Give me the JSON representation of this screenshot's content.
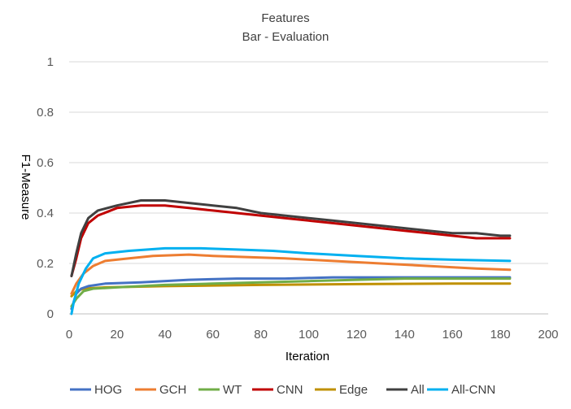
{
  "chart_data": {
    "type": "line",
    "title": "Features",
    "subtitle": "Bar - Evaluation",
    "xlabel": "Iteration",
    "ylabel": "F1-Measure",
    "xlim": [
      0,
      200
    ],
    "ylim": [
      0,
      1
    ],
    "x_ticks": [
      "0",
      "20",
      "40",
      "60",
      "80",
      "100",
      "120",
      "140",
      "160",
      "180",
      "200"
    ],
    "y_ticks": [
      "0",
      "0.2",
      "0.4",
      "0.6",
      "0.8",
      "1"
    ],
    "grid": "horizontal",
    "legend_position": "bottom",
    "series": [
      {
        "name": "HOG",
        "color": "#4472C4",
        "points": [
          [
            1,
            0.02
          ],
          [
            3,
            0.08
          ],
          [
            5,
            0.1
          ],
          [
            8,
            0.11
          ],
          [
            15,
            0.12
          ],
          [
            30,
            0.125
          ],
          [
            50,
            0.135
          ],
          [
            70,
            0.14
          ],
          [
            90,
            0.14
          ],
          [
            110,
            0.145
          ],
          [
            130,
            0.145
          ],
          [
            150,
            0.145
          ],
          [
            170,
            0.145
          ],
          [
            184,
            0.145
          ]
        ]
      },
      {
        "name": "GCH",
        "color": "#ED7D31",
        "points": [
          [
            1,
            0.08
          ],
          [
            3,
            0.12
          ],
          [
            6,
            0.16
          ],
          [
            10,
            0.19
          ],
          [
            15,
            0.21
          ],
          [
            25,
            0.22
          ],
          [
            35,
            0.23
          ],
          [
            50,
            0.235
          ],
          [
            60,
            0.23
          ],
          [
            75,
            0.225
          ],
          [
            90,
            0.22
          ],
          [
            110,
            0.21
          ],
          [
            130,
            0.2
          ],
          [
            150,
            0.19
          ],
          [
            170,
            0.18
          ],
          [
            184,
            0.175
          ]
        ]
      },
      {
        "name": "WT",
        "color": "#70AD47",
        "points": [
          [
            1,
            0.03
          ],
          [
            3,
            0.06
          ],
          [
            6,
            0.09
          ],
          [
            10,
            0.1
          ],
          [
            20,
            0.105
          ],
          [
            40,
            0.115
          ],
          [
            60,
            0.12
          ],
          [
            80,
            0.125
          ],
          [
            100,
            0.13
          ],
          [
            120,
            0.135
          ],
          [
            140,
            0.14
          ],
          [
            160,
            0.14
          ],
          [
            184,
            0.14
          ]
        ]
      },
      {
        "name": "CNN",
        "color": "#C00000",
        "points": [
          [
            1,
            0.15
          ],
          [
            3,
            0.22
          ],
          [
            5,
            0.3
          ],
          [
            8,
            0.36
          ],
          [
            12,
            0.39
          ],
          [
            20,
            0.42
          ],
          [
            30,
            0.43
          ],
          [
            40,
            0.43
          ],
          [
            50,
            0.42
          ],
          [
            60,
            0.41
          ],
          [
            70,
            0.4
          ],
          [
            80,
            0.39
          ],
          [
            90,
            0.38
          ],
          [
            100,
            0.37
          ],
          [
            110,
            0.36
          ],
          [
            120,
            0.35
          ],
          [
            130,
            0.34
          ],
          [
            140,
            0.33
          ],
          [
            150,
            0.32
          ],
          [
            160,
            0.31
          ],
          [
            170,
            0.3
          ],
          [
            180,
            0.3
          ],
          [
            184,
            0.3
          ]
        ]
      },
      {
        "name": "Edge",
        "color": "#BF9000",
        "points": [
          [
            1,
            0.07
          ],
          [
            3,
            0.09
          ],
          [
            6,
            0.1
          ],
          [
            15,
            0.105
          ],
          [
            40,
            0.11
          ],
          [
            80,
            0.115
          ],
          [
            120,
            0.118
          ],
          [
            160,
            0.12
          ],
          [
            184,
            0.12
          ]
        ]
      },
      {
        "name": "All",
        "color": "#404040",
        "points": [
          [
            1,
            0.15
          ],
          [
            3,
            0.24
          ],
          [
            5,
            0.32
          ],
          [
            8,
            0.38
          ],
          [
            12,
            0.41
          ],
          [
            20,
            0.43
          ],
          [
            30,
            0.45
          ],
          [
            40,
            0.45
          ],
          [
            50,
            0.44
          ],
          [
            60,
            0.43
          ],
          [
            70,
            0.42
          ],
          [
            80,
            0.4
          ],
          [
            90,
            0.39
          ],
          [
            100,
            0.38
          ],
          [
            110,
            0.37
          ],
          [
            120,
            0.36
          ],
          [
            130,
            0.35
          ],
          [
            140,
            0.34
          ],
          [
            150,
            0.33
          ],
          [
            160,
            0.32
          ],
          [
            170,
            0.32
          ],
          [
            180,
            0.31
          ],
          [
            184,
            0.31
          ]
        ]
      },
      {
        "name": "All-CNN",
        "color": "#00B0F0",
        "points": [
          [
            1,
            0.0
          ],
          [
            2,
            0.05
          ],
          [
            4,
            0.12
          ],
          [
            7,
            0.18
          ],
          [
            10,
            0.22
          ],
          [
            15,
            0.24
          ],
          [
            25,
            0.25
          ],
          [
            40,
            0.26
          ],
          [
            55,
            0.26
          ],
          [
            70,
            0.255
          ],
          [
            85,
            0.25
          ],
          [
            100,
            0.24
          ],
          [
            120,
            0.23
          ],
          [
            140,
            0.22
          ],
          [
            160,
            0.215
          ],
          [
            184,
            0.21
          ]
        ]
      }
    ]
  }
}
